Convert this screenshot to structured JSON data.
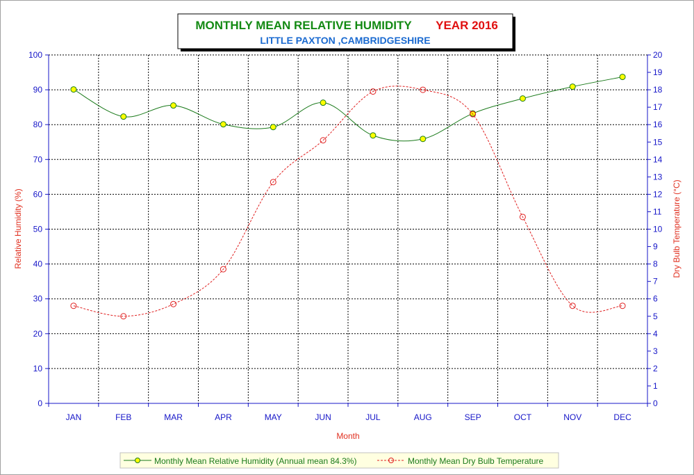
{
  "chart_data": {
    "type": "line",
    "title": "MONTHLY MEAN RELATIVE HUMIDITY",
    "title_year": "YEAR 2016",
    "subtitle": "LITTLE PAXTON ,CAMBRIDGESHIRE",
    "xlabel": "Month",
    "ylabel_left": "Relative Humidity (%)",
    "ylabel_right": "Dry Bulb Temperature (°C)",
    "categories": [
      "JAN",
      "FEB",
      "MAR",
      "APR",
      "MAY",
      "JUN",
      "JUL",
      "AUG",
      "SEP",
      "OCT",
      "NOV",
      "DEC"
    ],
    "ylim_left": [
      0,
      100
    ],
    "yticks_left": [
      0,
      10,
      20,
      30,
      40,
      50,
      60,
      70,
      80,
      90,
      100
    ],
    "ylim_right": [
      0,
      20
    ],
    "yticks_right": [
      0,
      1,
      2,
      3,
      4,
      5,
      6,
      7,
      8,
      9,
      10,
      11,
      12,
      13,
      14,
      15,
      16,
      17,
      18,
      19,
      20
    ],
    "grid": true,
    "legend_position": "bottom",
    "series": [
      {
        "name": "Monthly Mean Relative Humidity (Annual mean 84.3%)",
        "axis": "left",
        "color": "#1a7a1a",
        "marker_fill": "#ffff00",
        "line_style": "solid",
        "values": [
          90.1,
          82.3,
          85.5,
          80.1,
          79.3,
          86.3,
          76.9,
          75.9,
          83.2,
          87.5,
          90.9,
          93.7
        ]
      },
      {
        "name": "Monthly Mean Dry Bulb Temperature",
        "axis": "right",
        "color": "#e02020",
        "marker_fill": "none",
        "line_style": "dashed",
        "values": [
          5.6,
          5.0,
          5.7,
          7.7,
          12.7,
          15.1,
          17.9,
          18.0,
          16.6,
          10.7,
          5.6,
          5.6
        ]
      }
    ]
  }
}
